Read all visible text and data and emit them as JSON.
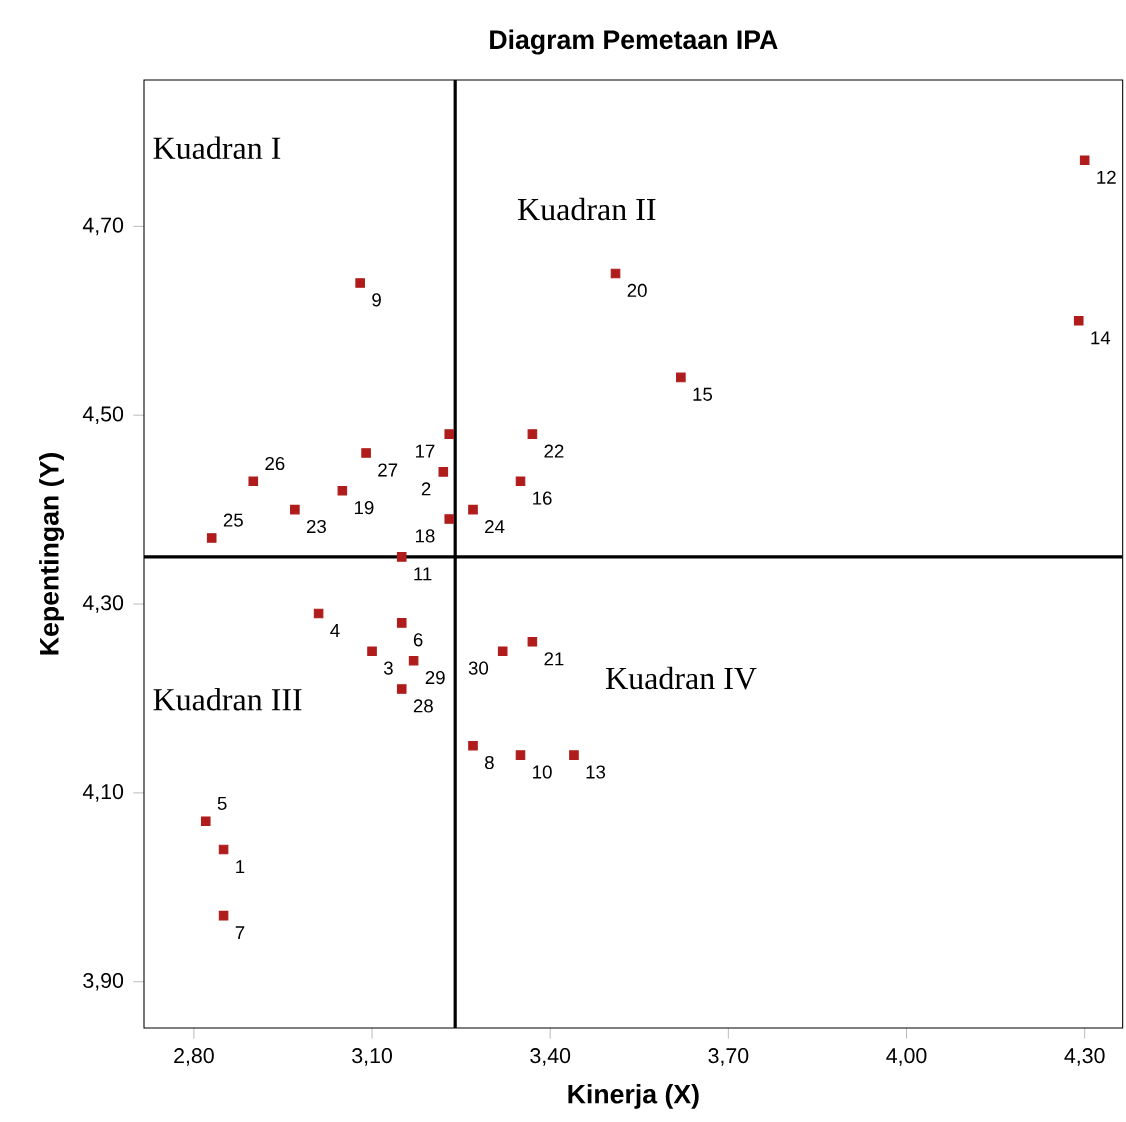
{
  "chart_data": {
    "type": "scatter",
    "title": "Diagram Pemetaan IPA",
    "xlabel": "Kinerja (X)",
    "ylabel": "Kepentingan (Y)",
    "x": [
      2.85,
      3.22,
      3.1,
      3.01,
      2.82,
      3.15,
      2.85,
      3.27,
      3.08,
      3.35,
      3.15,
      4.3,
      3.44,
      4.29,
      3.62,
      3.35,
      3.23,
      3.23,
      3.05,
      3.51,
      3.37,
      3.37,
      2.97,
      3.27,
      2.83,
      2.9,
      3.09,
      3.15,
      3.17,
      3.32
    ],
    "values": [
      4.04,
      4.44,
      4.25,
      4.29,
      4.07,
      4.28,
      3.97,
      4.15,
      4.64,
      4.14,
      4.35,
      4.77,
      4.14,
      4.6,
      4.54,
      4.43,
      4.48,
      4.39,
      4.42,
      4.65,
      4.26,
      4.48,
      4.4,
      4.4,
      4.37,
      4.43,
      4.46,
      4.21,
      4.24,
      4.25
    ],
    "color": "#b01c1c",
    "marker": "square",
    "xlim": [
      2.716,
      4.364
    ],
    "ylim": [
      3.851,
      4.855
    ],
    "xticks": [
      {
        "value": 2.8,
        "label": "2,80"
      },
      {
        "value": 3.1,
        "label": "3,10"
      },
      {
        "value": 3.4,
        "label": "3,40"
      },
      {
        "value": 3.7,
        "label": "3,70"
      },
      {
        "value": 4.0,
        "label": "4,00"
      },
      {
        "value": 4.3,
        "label": "4,30"
      }
    ],
    "yticks": [
      {
        "value": 3.9,
        "label": "3,90"
      },
      {
        "value": 4.1,
        "label": "4,10"
      },
      {
        "value": 4.3,
        "label": "4,30"
      },
      {
        "value": 4.5,
        "label": "4,50"
      },
      {
        "value": 4.7,
        "label": "4,70"
      }
    ],
    "ref_lines": [
      {
        "axis": "x",
        "value": 3.24
      },
      {
        "axis": "y",
        "value": 4.35
      }
    ],
    "annotations": [
      "Kuadran I",
      "Kuadran II",
      "Kuadran III",
      "Kuadran IV",
      {
        "text": "1",
        "x": 2.85,
        "y": 4.04
      },
      {
        "text": "2",
        "x": 3.22,
        "y": 4.44
      },
      {
        "text": "3",
        "x": 3.1,
        "y": 4.25
      },
      {
        "text": "4",
        "x": 3.01,
        "y": 4.29
      },
      {
        "text": "5",
        "x": 2.82,
        "y": 4.07
      },
      {
        "text": "6",
        "x": 3.15,
        "y": 4.28
      },
      {
        "text": "7",
        "x": 2.85,
        "y": 3.97
      },
      {
        "text": "8",
        "x": 3.27,
        "y": 4.15
      },
      {
        "text": "9",
        "x": 3.08,
        "y": 4.64
      },
      {
        "text": "10",
        "x": 3.35,
        "y": 4.14
      },
      {
        "text": "11",
        "x": 3.15,
        "y": 4.35
      },
      {
        "text": "12",
        "x": 4.3,
        "y": 4.77
      },
      {
        "text": "13",
        "x": 3.44,
        "y": 4.14
      },
      {
        "text": "14",
        "x": 4.29,
        "y": 4.6
      },
      {
        "text": "15",
        "x": 3.62,
        "y": 4.54
      },
      {
        "text": "16",
        "x": 3.35,
        "y": 4.43
      },
      {
        "text": "17",
        "x": 3.23,
        "y": 4.48
      },
      {
        "text": "18",
        "x": 3.23,
        "y": 4.39
      },
      {
        "text": "19",
        "x": 3.05,
        "y": 4.42
      },
      {
        "text": "20",
        "x": 3.51,
        "y": 4.65
      },
      {
        "text": "21",
        "x": 3.37,
        "y": 4.26
      },
      {
        "text": "22",
        "x": 3.37,
        "y": 4.48
      },
      {
        "text": "23",
        "x": 2.97,
        "y": 4.4
      },
      {
        "text": "24",
        "x": 3.27,
        "y": 4.4
      },
      {
        "text": "25",
        "x": 2.83,
        "y": 4.37
      },
      {
        "text": "26",
        "x": 2.9,
        "y": 4.43
      },
      {
        "text": "27",
        "x": 3.09,
        "y": 4.46
      },
      {
        "text": "28",
        "x": 3.15,
        "y": 4.21
      },
      {
        "text": "29",
        "x": 3.17,
        "y": 4.24
      },
      {
        "text": "30",
        "x": 3.32,
        "y": 4.25
      }
    ],
    "grid": false
  }
}
